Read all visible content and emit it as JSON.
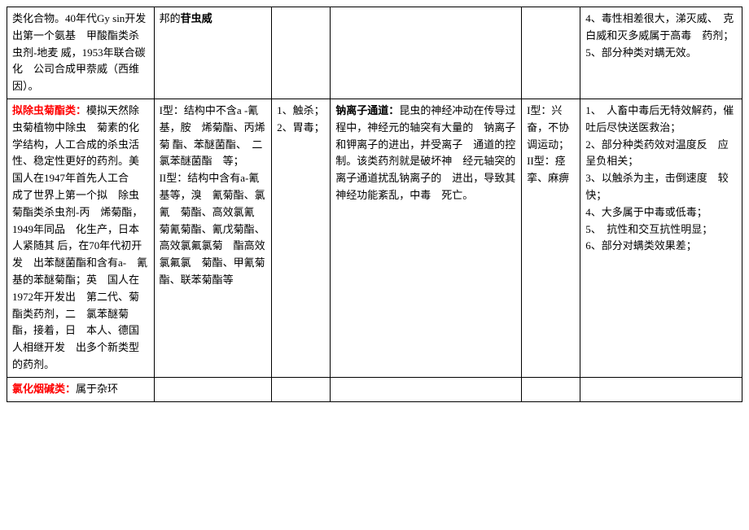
{
  "table": {
    "rows": [
      {
        "col1_prefix": "类化合物。40年代Gy sin开发出第一个氨基　甲酸酯类杀虫剂-地麦 威，1953年联合碳化　公司合成甲萘威（西维　因）。",
        "col1_highlight": "",
        "col2_bold": "苷虫威",
        "col2_prefix": "邦的",
        "col2_text": "",
        "col3": "",
        "col4_bold": "",
        "col4_text": "",
        "col5": "",
        "col6": "4、毒性相差很大，涕灭威、　克白威和灭多威属于高毒　药剂；\n5、部分种类对螨无效。"
      },
      {
        "col1_highlight": "拟除虫菊酯类：",
        "col1_prefix": "模拟天然除虫菊植物中除虫　菊素的化学结构，人工合成的杀虫活性、稳定性更好的药剂。美国人在1947年首先人工合　成了世界上第一个拟　除虫菊酯类杀虫剂-丙　烯菊酯，1949年同品　化生产，日本人紧随其 后，在70年代初开发　出苯醚菌酯和含有a-　氰基的苯醚菊酯；英　国人在1972年开发出　第二代、菊酯类药剂，二　氯苯醚菊酯，接着，日　本人、德国人相继开发　出多个新类型的药剂。",
        "col2_bold": "",
        "col2_prefix": "",
        "col2_text": "I型：结构中不含a -氰基，胺　烯菊酯、丙烯菊 酯、苯醚菌酯、　二氯苯醚菌酯　等；\nII型：结构中含有a-氰基等，溴　氰菊酯、氯氰　菊酯、高效氯氰　菊氰菊酯、氰戊菊酯、高效氯氟氯菊　酯高效氯氟氯　菊酯、甲氰菊酯、联苯菊酯等",
        "col3": "1、触杀；\n2、胃毒；",
        "col4_bold": "钠离子通道：",
        "col4_text": "昆虫的神经冲动在传导过程中，神经元的轴突有大量的　钠离子和钾离子的进出，并受离子　通道的控制。该类药剂就是破坏神　经元轴突的离子通道扰乱钠离子的　进出，导致其神经功能紊乱，中毒　死亡。",
        "col5": "I型：兴奋，不协调运动；　II型：痉挛、麻痹",
        "col6": "1、　人畜中毒后无特效解药，催吐后尽快送医救治；\n2、部分种类药效对温度反　应呈负相关；\n3、以触杀为主，击倒速度　较快；\n4、大多属于中毒或低毒；\n5、　抗性和交互抗性明显；\n6、部分对螨类效果差；"
      },
      {
        "col1_highlight": "氯化烟碱类：",
        "col1_prefix": "属于杂环",
        "col2_bold": "",
        "col2_prefix": "",
        "col2_text": "",
        "col3": "",
        "col4_bold": "",
        "col4_text": "",
        "col5": "",
        "col6": ""
      }
    ]
  }
}
